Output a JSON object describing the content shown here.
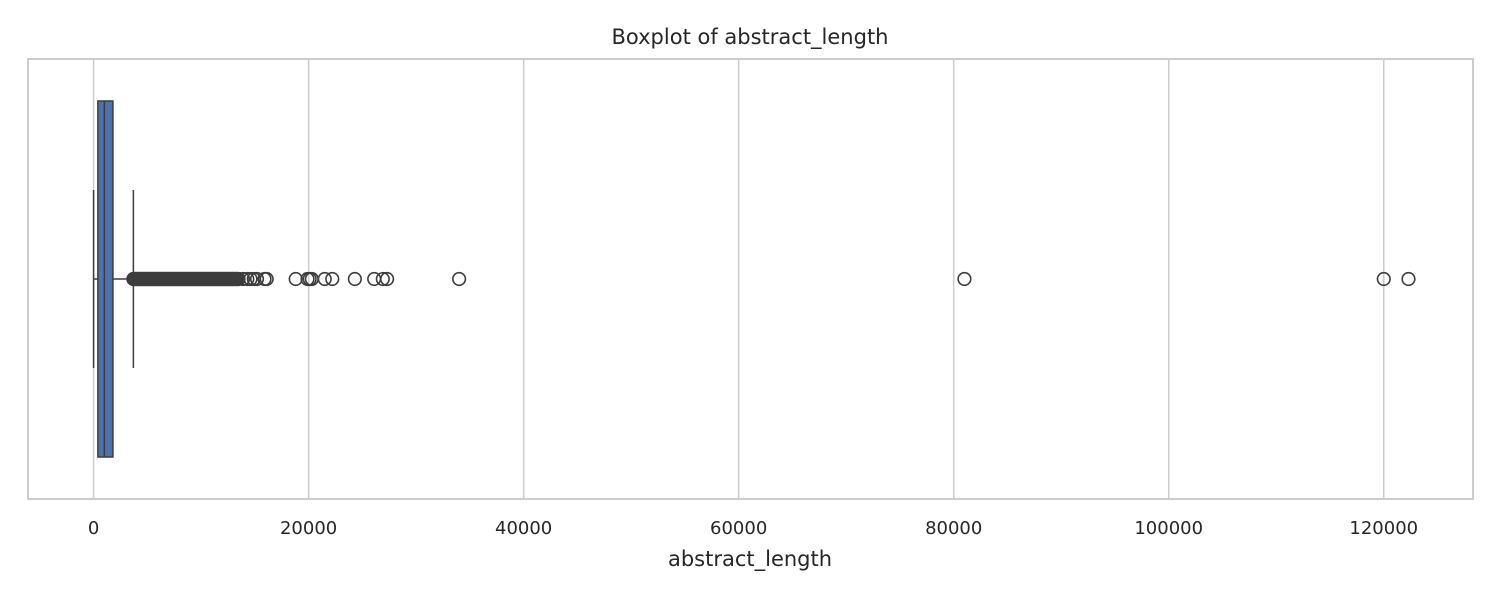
{
  "chart_data": {
    "type": "boxplot",
    "title": "Boxplot of abstract_length",
    "xlabel": "abstract_length",
    "ylabel": "",
    "orientation": "horizontal",
    "xlim": [
      -6100,
      128300
    ],
    "xticks": [
      0,
      20000,
      40000,
      60000,
      80000,
      100000,
      120000
    ],
    "xtick_labels": [
      "0",
      "20000",
      "40000",
      "60000",
      "80000",
      "100000",
      "120000"
    ],
    "grid": "vertical",
    "box": {
      "q1": 400,
      "median": 1000,
      "q3": 1800,
      "whisker_low": 0,
      "whisker_high": 3700
    },
    "outliers_dense_range": [
      3700,
      13500
    ],
    "outliers": [
      13900,
      14300,
      14600,
      14900,
      15200,
      15900,
      16100,
      18800,
      19900,
      20100,
      20300,
      21500,
      22200,
      24300,
      26100,
      26900,
      27300,
      34000,
      81000,
      120000,
      122300
    ],
    "colors": {
      "box_fill": "#4c72b0",
      "line": "#3d3d3d",
      "grid": "#cccccc",
      "frame": "#cccccc"
    }
  }
}
